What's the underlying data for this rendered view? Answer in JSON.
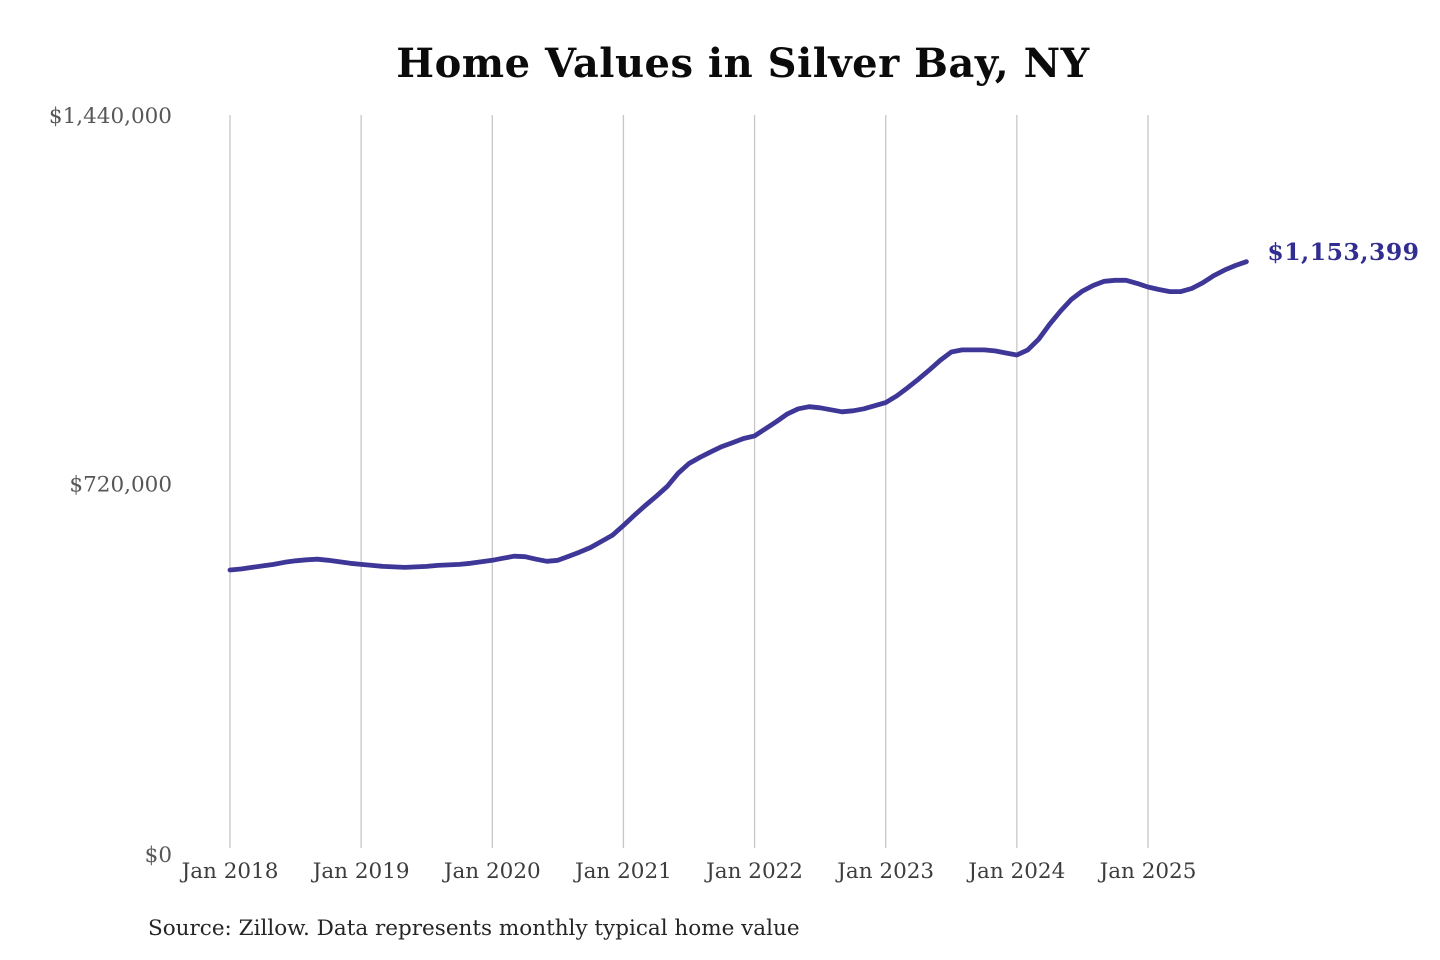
{
  "page": {
    "background": "#ffffff"
  },
  "chart_data": {
    "type": "line",
    "title": "Home Values in Silver Bay, NY",
    "source_note": "Source: Zillow. Data represents monthly typical home value",
    "end_annotation": "$1,153,399",
    "latest_value": 1153399,
    "x_tick_labels": [
      "Jan 2018",
      "Jan 2019",
      "Jan 2020",
      "Jan 2021",
      "Jan 2022",
      "Jan 2023",
      "Jan 2024",
      "Jan 2025"
    ],
    "y_ticks": [
      {
        "label": "$0",
        "value": 0
      },
      {
        "label": "$720,000",
        "value": 720000
      },
      {
        "label": "$1,440,000",
        "value": 1440000
      }
    ],
    "ylim": [
      0,
      1440000
    ],
    "months_per_tick": 12,
    "grid": "vertical-only",
    "legend": "none",
    "series": [
      {
        "name": "Monthly typical home value",
        "values": [
          551000,
          553000,
          556000,
          559000,
          562000,
          566000,
          569000,
          571000,
          572000,
          570000,
          567000,
          564000,
          562000,
          560000,
          558000,
          557000,
          556000,
          557000,
          558000,
          560000,
          561000,
          562000,
          564000,
          567000,
          570000,
          574000,
          578000,
          577000,
          572000,
          568000,
          570000,
          578000,
          586000,
          595000,
          607000,
          619000,
          638000,
          658000,
          677000,
          695000,
          714000,
          740000,
          759000,
          771000,
          782000,
          792000,
          800000,
          808000,
          813000,
          827000,
          841000,
          856000,
          866000,
          870000,
          868000,
          864000,
          860000,
          862000,
          866000,
          872000,
          878000,
          891000,
          907000,
          924000,
          942000,
          961000,
          977000,
          981000,
          981000,
          981000,
          979000,
          975000,
          971000,
          981000,
          1002000,
          1031000,
          1057000,
          1080000,
          1096000,
          1107000,
          1115000,
          1117000,
          1117000,
          1111000,
          1104000,
          1099000,
          1095000,
          1095000,
          1101000,
          1112000,
          1126000,
          1137000,
          1146000,
          1153399
        ]
      }
    ],
    "colors": {
      "line": "#3e3797",
      "end_label": "#322e91",
      "grid": "#c7c7c7",
      "x_labels": "#3d3d3d",
      "y_labels": "#575757",
      "title": "#0b0b0b",
      "source": "#252525"
    }
  }
}
